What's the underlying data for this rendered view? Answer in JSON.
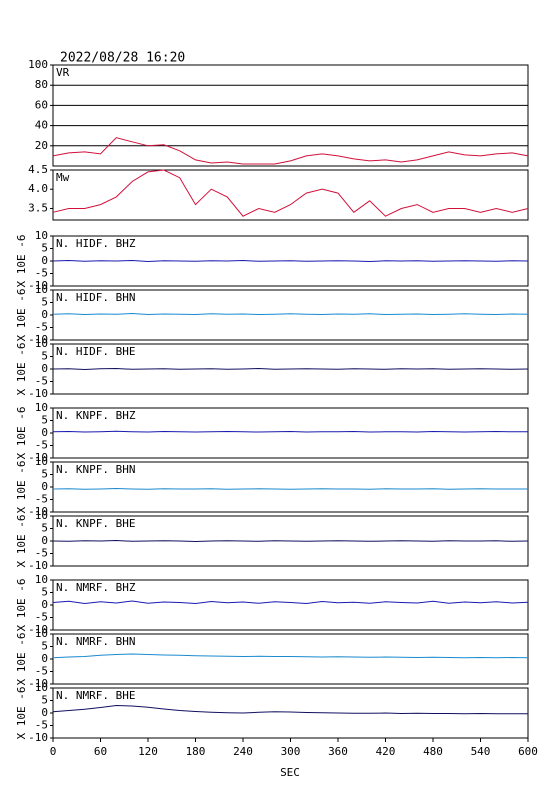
{
  "chart_data": {
    "type": "line",
    "title": "2022/08/28 16:20",
    "xlabel": "SEC",
    "xlim": [
      0,
      600
    ],
    "xticks": [
      0,
      60,
      120,
      180,
      240,
      300,
      360,
      420,
      480,
      540,
      600
    ],
    "x": [
      0,
      20,
      40,
      60,
      80,
      100,
      120,
      140,
      160,
      180,
      200,
      220,
      240,
      260,
      280,
      300,
      320,
      340,
      360,
      380,
      400,
      420,
      440,
      460,
      480,
      500,
      520,
      540,
      560,
      580,
      600
    ],
    "panels": [
      {
        "name": "VR",
        "color": "#d0103a",
        "ylim": [
          0,
          100
        ],
        "yticks": [
          20,
          40,
          60,
          80,
          100
        ],
        "grid": true,
        "values": [
          10,
          13,
          14,
          12,
          28,
          24,
          20,
          21,
          15,
          6,
          3,
          4,
          2,
          2,
          2,
          5,
          10,
          12,
          10,
          7,
          5,
          6,
          4,
          6,
          10,
          14,
          11,
          10,
          12,
          13,
          10
        ]
      },
      {
        "name": "Mw",
        "color": "#d0103a",
        "ylim": [
          3.2,
          4.5
        ],
        "yticks": [
          3.5,
          {
            "value": 4,
            "label": "4.0"
          },
          4.5
        ],
        "grid": false,
        "values": [
          3.4,
          3.5,
          3.5,
          3.6,
          3.8,
          4.2,
          4.45,
          4.5,
          4.3,
          3.6,
          4.0,
          3.8,
          3.3,
          3.5,
          3.4,
          3.6,
          3.9,
          4.0,
          3.9,
          3.4,
          3.7,
          3.3,
          3.5,
          3.6,
          3.4,
          3.5,
          3.5,
          3.4,
          3.5,
          3.4,
          3.5
        ]
      },
      {
        "name": "N. HIDF. BHZ",
        "ylabel": "X 10E -6",
        "color": "#1a1ab0",
        "ylim": [
          -10,
          10
        ],
        "yticks": [
          10,
          5,
          0,
          -5,
          -10
        ],
        "grid": false,
        "values": [
          0,
          0.2,
          -0.1,
          0.1,
          0,
          0.2,
          -0.2,
          0.1,
          0,
          -0.1,
          0.1,
          0,
          0.2,
          -0.1,
          0,
          0.1,
          -0.1,
          0,
          0.1,
          0,
          -0.2,
          0.1,
          0,
          0.1,
          -0.1,
          0,
          0.1,
          0,
          -0.1,
          0.1,
          0
        ]
      },
      {
        "name": "N. HIDF. BHN",
        "ylabel": "X 10E -6",
        "color": "#1a8ad0",
        "ylim": [
          -10,
          10
        ],
        "yticks": [
          10,
          5,
          0,
          -5,
          -10
        ],
        "grid": false,
        "values": [
          0.3,
          0.5,
          0.2,
          0.4,
          0.3,
          0.6,
          0.2,
          0.4,
          0.3,
          0.2,
          0.5,
          0.3,
          0.4,
          0.2,
          0.3,
          0.5,
          0.3,
          0.2,
          0.4,
          0.3,
          0.5,
          0.2,
          0.3,
          0.4,
          0.2,
          0.3,
          0.5,
          0.3,
          0.2,
          0.4,
          0.3
        ]
      },
      {
        "name": "N. HIDF. BHE",
        "ylabel": "X 10E -6",
        "color": "#101060",
        "ylim": [
          -10,
          10
        ],
        "yticks": [
          10,
          5,
          0,
          -5,
          -10
        ],
        "grid": false,
        "values": [
          0,
          0.1,
          -0.2,
          0.1,
          0.2,
          -0.1,
          0,
          0.1,
          -0.1,
          0,
          0.1,
          -0.1,
          0,
          0.2,
          -0.1,
          0,
          0.1,
          0,
          -0.1,
          0.1,
          0,
          -0.1,
          0.1,
          0,
          0.1,
          -0.1,
          0,
          0.1,
          0,
          -0.1,
          0
        ]
      },
      {
        "name": "N. KNPF. BHZ",
        "ylabel": "X 10E -6",
        "color": "#1a1ab0",
        "ylim": [
          -10,
          10
        ],
        "yticks": [
          10,
          5,
          0,
          -5,
          -10
        ],
        "grid": false,
        "values": [
          0.5,
          0.6,
          0.4,
          0.5,
          0.7,
          0.5,
          0.4,
          0.6,
          0.5,
          0.4,
          0.5,
          0.6,
          0.5,
          0.4,
          0.5,
          0.6,
          0.4,
          0.5,
          0.5,
          0.6,
          0.4,
          0.5,
          0.5,
          0.4,
          0.6,
          0.5,
          0.4,
          0.5,
          0.6,
          0.5,
          0.5
        ]
      },
      {
        "name": "N. KNPF. BHN",
        "ylabel": "X 10E -6",
        "color": "#1a8ad0",
        "ylim": [
          -10,
          10
        ],
        "yticks": [
          10,
          5,
          0,
          -5,
          -10
        ],
        "grid": false,
        "values": [
          -0.8,
          -0.7,
          -0.9,
          -0.8,
          -0.6,
          -0.8,
          -0.9,
          -0.7,
          -0.8,
          -0.8,
          -0.7,
          -0.9,
          -0.8,
          -0.7,
          -0.8,
          -0.9,
          -0.8,
          -0.7,
          -0.8,
          -0.8,
          -0.9,
          -0.7,
          -0.8,
          -0.8,
          -0.7,
          -0.9,
          -0.8,
          -0.7,
          -0.8,
          -0.8,
          -0.8
        ]
      },
      {
        "name": "N. KNPF. BHE",
        "ylabel": "X 10E -6",
        "color": "#101060",
        "ylim": [
          -10,
          10
        ],
        "yticks": [
          10,
          5,
          0,
          -5,
          -10
        ],
        "grid": false,
        "values": [
          0,
          -0.1,
          0.1,
          0,
          0.2,
          -0.1,
          0,
          0.1,
          0,
          -0.2,
          0,
          0.1,
          0,
          -0.1,
          0.1,
          0,
          -0.1,
          0,
          0.1,
          0,
          -0.1,
          0,
          0.1,
          0,
          -0.1,
          0.1,
          0,
          0,
          0.1,
          -0.1,
          0
        ]
      },
      {
        "name": "N. NMRF. BHZ",
        "ylabel": "X 10E -6",
        "color": "#1a1ab0",
        "ylim": [
          -10,
          10
        ],
        "yticks": [
          10,
          5,
          0,
          -5,
          -10
        ],
        "grid": false,
        "values": [
          1,
          1.5,
          0.6,
          1.3,
          0.8,
          1.6,
          0.7,
          1.2,
          1.0,
          0.6,
          1.4,
          0.9,
          1.2,
          0.7,
          1.3,
          1.0,
          0.6,
          1.4,
          0.9,
          1.1,
          0.7,
          1.3,
          1.0,
          0.8,
          1.5,
          0.7,
          1.2,
          0.9,
          1.3,
          0.8,
          1.1
        ]
      },
      {
        "name": "N. NMRF. BHN",
        "ylabel": "X 10E -6",
        "color": "#1a8ad0",
        "ylim": [
          -10,
          10
        ],
        "yticks": [
          10,
          5,
          0,
          -5,
          -10
        ],
        "grid": false,
        "values": [
          0.5,
          0.8,
          1.0,
          1.5,
          1.8,
          2.0,
          1.8,
          1.6,
          1.5,
          1.3,
          1.2,
          1.1,
          1.0,
          1.1,
          1.0,
          1.0,
          0.9,
          0.8,
          0.9,
          0.8,
          0.7,
          0.8,
          0.7,
          0.6,
          0.7,
          0.6,
          0.5,
          0.6,
          0.5,
          0.6,
          0.5
        ]
      },
      {
        "name": "N. NMRF. BHE",
        "ylabel": "X 10E -6",
        "color": "#101060",
        "ylim": [
          -10,
          10
        ],
        "yticks": [
          10,
          5,
          0,
          -5,
          -10
        ],
        "grid": false,
        "values": [
          0.5,
          1.0,
          1.5,
          2.2,
          3.0,
          2.8,
          2.3,
          1.6,
          1.0,
          0.6,
          0.3,
          0.1,
          0,
          0.3,
          0.5,
          0.4,
          0.2,
          0.1,
          0,
          -0.1,
          -0.1,
          0,
          -0.2,
          -0.1,
          -0.2,
          -0.2,
          -0.3,
          -0.2,
          -0.3,
          -0.3,
          -0.3
        ]
      }
    ]
  }
}
